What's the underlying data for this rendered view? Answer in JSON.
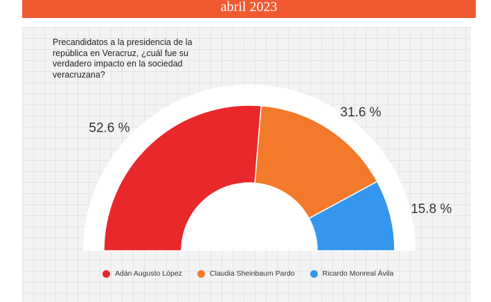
{
  "header": {
    "date": "abril 2023"
  },
  "question": "Precandidatos a la presidencia de la república  en Veracruz, ¿cuál fue su verdadero impacto en la sociedad veracruzana?",
  "chart_data": {
    "type": "pie",
    "variant": "half-donut",
    "title": "Precandidatos a la presidencia de la república  en Veracruz, ¿cuál fue su verdadero impacto en la sociedad veracruzana?",
    "categories": [
      "Adán Augusto López",
      "Claudia Sheinbaum Pardo",
      "Ricardo Monreal Ávila"
    ],
    "values": [
      52.6,
      31.6,
      15.8
    ],
    "labels": [
      "52.6 %",
      "31.6 %",
      "15.8 %"
    ],
    "colors": [
      "#e8282b",
      "#f47a2b",
      "#3497ed"
    ],
    "legend_position": "bottom"
  }
}
